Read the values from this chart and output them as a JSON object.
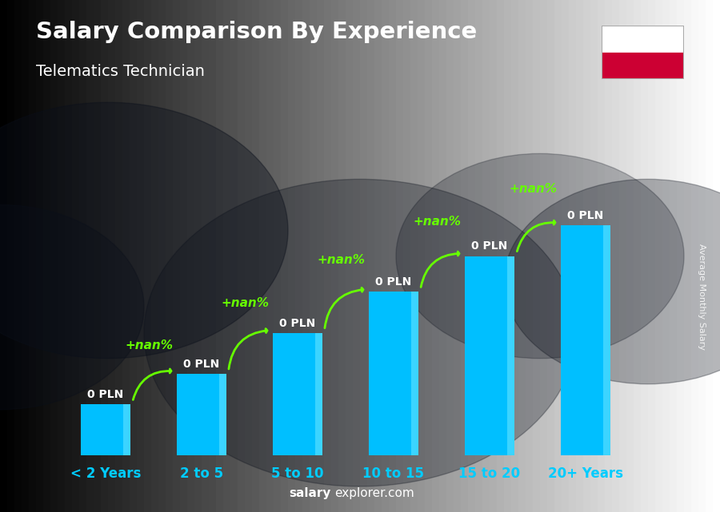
{
  "title": "Salary Comparison By Experience",
  "subtitle": "Telematics Technician",
  "categories": [
    "< 2 Years",
    "2 to 5",
    "5 to 10",
    "10 to 15",
    "15 to 20",
    "20+ Years"
  ],
  "heights": [
    1.0,
    1.6,
    2.4,
    3.2,
    3.9,
    4.5
  ],
  "bar_color": "#00BFFF",
  "bar_color_light": "#55DDFF",
  "nan_color": "#66FF00",
  "salary_labels": [
    "0 PLN",
    "0 PLN",
    "0 PLN",
    "0 PLN",
    "0 PLN",
    "0 PLN"
  ],
  "pct_labels": [
    "+nan%",
    "+nan%",
    "+nan%",
    "+nan%",
    "+nan%"
  ],
  "title_color": "#ffffff",
  "subtitle_color": "#ffffff",
  "tick_color": "#00CCFF",
  "watermark_salary": "salary",
  "watermark_explorer": "explorer.com",
  "side_label": "Average Monthly Salary",
  "bg_color": "#1a2030",
  "figsize": [
    9.0,
    6.41
  ],
  "dpi": 100,
  "bar_width": 0.52,
  "ylim_max": 6.0,
  "flag_white": "#ffffff",
  "flag_red": "#CC0033"
}
